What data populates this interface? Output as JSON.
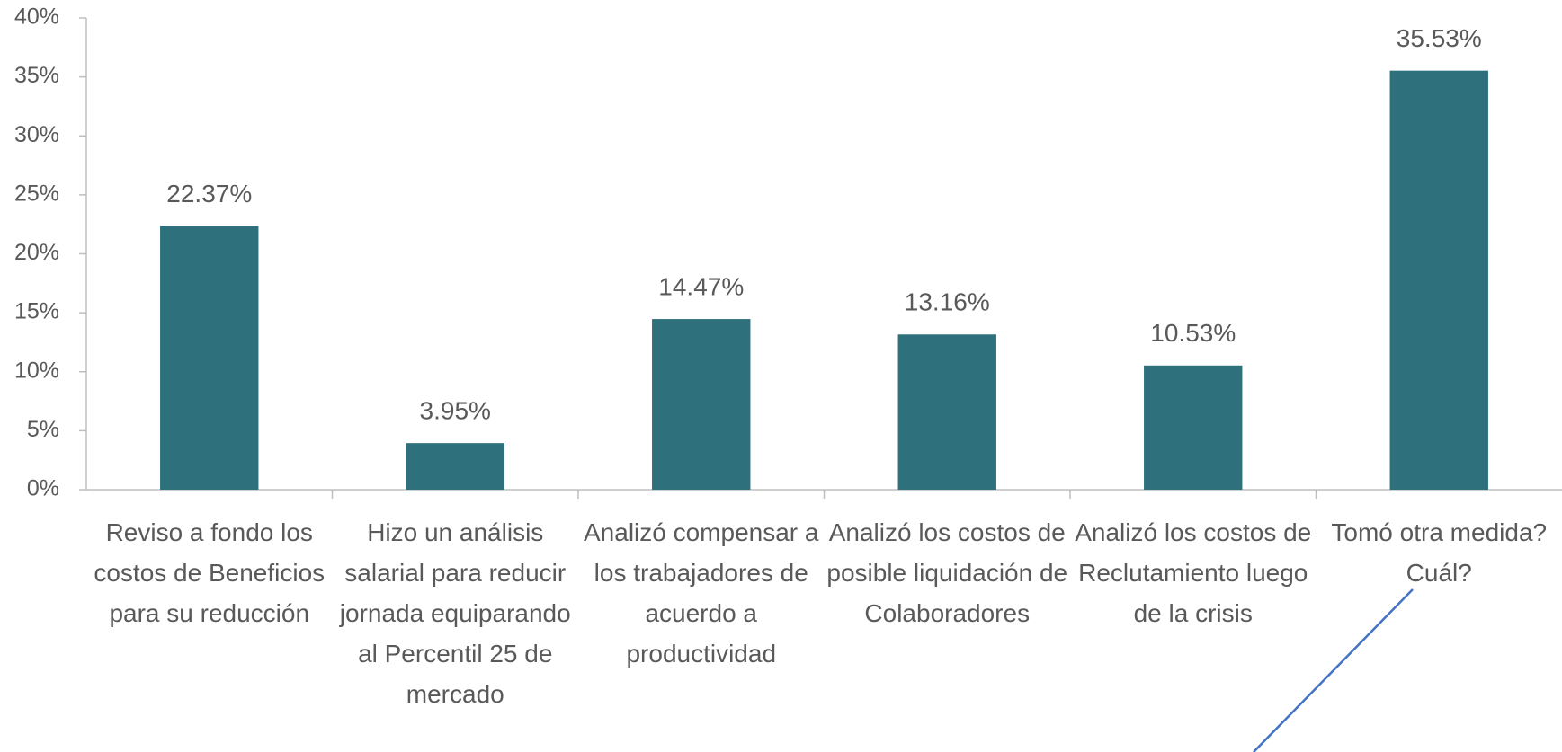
{
  "chart_data": {
    "type": "bar",
    "categories": [
      "Reviso a fondo los costos de Beneficios para su reducción",
      "Hizo un análisis salarial para reducir jornada equiparando al Percentil 25 de mercado",
      "Analizó compensar a los trabajadores de acuerdo a productividad",
      "Analizó los costos de posible liquidación de Colaboradores",
      "Analizó los costos de Reclutamiento luego de la crisis",
      "Tomó otra medida? Cuál?"
    ],
    "values": [
      22.37,
      3.95,
      14.47,
      13.16,
      10.53,
      35.53
    ],
    "value_labels": [
      "22.37%",
      "3.95%",
      "14.47%",
      "13.16%",
      "10.53%",
      "35.53%"
    ],
    "color": "#2e717d",
    "ylim": [
      0,
      40
    ],
    "yticks": [
      {
        "value": 0,
        "label": "0%"
      },
      {
        "value": 5,
        "label": "5%"
      },
      {
        "value": 10,
        "label": "10%"
      },
      {
        "value": 15,
        "label": "15%"
      },
      {
        "value": 20,
        "label": "20%"
      },
      {
        "value": 25,
        "label": "25%"
      },
      {
        "value": 30,
        "label": "30%"
      },
      {
        "value": 35,
        "label": "35%"
      },
      {
        "value": 40,
        "label": "40%"
      }
    ],
    "grid": false
  }
}
